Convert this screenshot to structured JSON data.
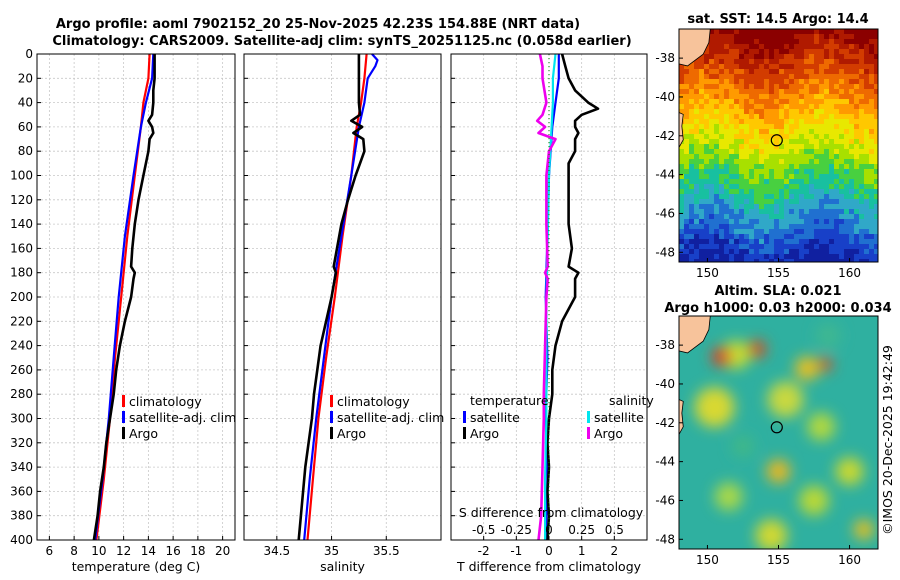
{
  "header": {
    "line1": "Argo profile: aoml 7902152_20 25-Nov-2025 42.23S 154.88E (NRT data)",
    "line2": "Climatology: CARS2009. Satellite-adj clim: synTS_20251125.nc (0.058d earlier)"
  },
  "colors": {
    "clim": "#ff0000",
    "sat": "#0000ff",
    "argo": "#000000",
    "sat_sal": "#00e5ee",
    "argo_sal": "#ee00ee"
  },
  "chart_data": [
    {
      "type": "line",
      "id": "temperature",
      "xlabel": "temperature (deg C)",
      "ylabel": "",
      "xlim": [
        5,
        21
      ],
      "ylim": [
        0,
        400
      ],
      "xticks": [
        6,
        8,
        10,
        12,
        14,
        16,
        18,
        20
      ],
      "yticks": [
        0,
        20,
        40,
        60,
        80,
        100,
        120,
        140,
        160,
        180,
        200,
        220,
        240,
        260,
        280,
        300,
        320,
        340,
        360,
        380,
        400
      ],
      "legend": [
        "climatology",
        "satellite-adj. clim",
        "Argo"
      ],
      "series": [
        {
          "name": "climatology",
          "color": "#ff0000",
          "depth": [
            0,
            20,
            40,
            60,
            100,
            150,
            200,
            250,
            300,
            350,
            400
          ],
          "values": [
            14.1,
            14.0,
            13.6,
            13.4,
            12.9,
            12.3,
            11.8,
            11.3,
            10.9,
            10.4,
            9.8
          ]
        },
        {
          "name": "satellite-adj. clim",
          "color": "#0000ff",
          "depth": [
            0,
            20,
            40,
            60,
            100,
            150,
            200,
            250,
            300,
            350,
            400
          ],
          "values": [
            14.4,
            14.3,
            13.8,
            13.4,
            12.8,
            12.1,
            11.6,
            11.2,
            10.8,
            10.3,
            9.7
          ]
        },
        {
          "name": "Argo",
          "color": "#000000",
          "depth": [
            0,
            10,
            20,
            30,
            40,
            50,
            55,
            60,
            65,
            70,
            80,
            90,
            100,
            120,
            140,
            160,
            175,
            180,
            185,
            200,
            220,
            240,
            260,
            280,
            300,
            320,
            340,
            360,
            380,
            400
          ],
          "values": [
            14.5,
            14.5,
            14.5,
            14.4,
            14.4,
            14.3,
            14.0,
            14.3,
            14.4,
            14.1,
            14.0,
            13.8,
            13.6,
            13.2,
            12.9,
            12.7,
            12.6,
            12.9,
            12.8,
            12.6,
            12.1,
            11.7,
            11.4,
            11.2,
            10.9,
            10.6,
            10.4,
            10.1,
            9.9,
            9.6
          ]
        }
      ]
    },
    {
      "type": "line",
      "id": "salinity",
      "xlabel": "salinity",
      "xlim": [
        34.2,
        36.0
      ],
      "ylim": [
        0,
        400
      ],
      "xticks": [
        34.5,
        35,
        35.5
      ],
      "legend": [
        "climatology",
        "satellite-adj. clim",
        "Argo"
      ],
      "series": [
        {
          "name": "climatology",
          "color": "#ff0000",
          "depth": [
            0,
            20,
            40,
            60,
            100,
            150,
            200,
            250,
            300,
            350,
            400
          ],
          "values": [
            35.32,
            35.3,
            35.27,
            35.23,
            35.18,
            35.1,
            35.03,
            34.95,
            34.88,
            34.83,
            34.78
          ]
        },
        {
          "name": "satellite-adj. clim",
          "color": "#0000ff",
          "depth": [
            0,
            5,
            10,
            20,
            40,
            60,
            100,
            150,
            200,
            250,
            300,
            350,
            400
          ],
          "values": [
            35.37,
            35.42,
            35.4,
            35.33,
            35.3,
            35.25,
            35.18,
            35.09,
            35.0,
            34.93,
            34.86,
            34.8,
            34.75
          ]
        },
        {
          "name": "Argo",
          "color": "#000000",
          "depth": [
            0,
            10,
            20,
            30,
            40,
            50,
            55,
            60,
            65,
            70,
            80,
            90,
            100,
            120,
            140,
            160,
            175,
            180,
            185,
            200,
            220,
            240,
            260,
            280,
            300,
            320,
            340,
            360,
            380,
            400
          ],
          "values": [
            35.25,
            35.25,
            35.25,
            35.25,
            35.25,
            35.26,
            35.18,
            35.28,
            35.2,
            35.29,
            35.3,
            35.26,
            35.22,
            35.15,
            35.09,
            35.05,
            35.02,
            35.04,
            35.03,
            35.0,
            34.95,
            34.9,
            34.87,
            34.84,
            34.82,
            34.79,
            34.76,
            34.74,
            34.72,
            34.7
          ]
        }
      ]
    },
    {
      "type": "line",
      "id": "difference",
      "xlabel": "T difference from climatology",
      "title_top": "S difference from climatology",
      "xlim": [
        -3,
        3
      ],
      "ylim": [
        0,
        400
      ],
      "xticks": [
        -2,
        -1,
        0,
        1,
        2
      ],
      "xtick_labels": [
        "-2",
        "-1",
        "0",
        "1",
        "2"
      ],
      "sticks": [
        -0.5,
        -0.25,
        0,
        0.25,
        0.5
      ],
      "stick_labels": [
        "-0.5",
        "-0.25",
        "0",
        "0.25",
        "0.5"
      ],
      "s_scale": 4,
      "legend_t_title": "temperature",
      "legend_s_title": "salinity",
      "legend_t": [
        "satellite",
        "Argo"
      ],
      "legend_s": [
        "satellite",
        "Argo"
      ],
      "series": [
        {
          "name": "T satellite",
          "color": "#0000ff",
          "depth": [
            0,
            20,
            40,
            60,
            100,
            150,
            200,
            250,
            300,
            350,
            400
          ],
          "values": [
            0.3,
            0.3,
            0.2,
            0.1,
            0.0,
            -0.05,
            -0.1,
            -0.05,
            -0.1,
            -0.05,
            -0.1
          ]
        },
        {
          "name": "T Argo",
          "color": "#000000",
          "depth": [
            0,
            10,
            20,
            30,
            40,
            45,
            50,
            55,
            60,
            65,
            70,
            80,
            90,
            100,
            120,
            140,
            160,
            175,
            180,
            185,
            200,
            220,
            240,
            260,
            280,
            300,
            320,
            340,
            360,
            380,
            400
          ],
          "values": [
            0.4,
            0.5,
            0.6,
            0.8,
            1.2,
            1.5,
            1.0,
            0.8,
            0.8,
            0.9,
            0.8,
            0.8,
            0.6,
            0.6,
            0.6,
            0.6,
            0.7,
            0.6,
            0.9,
            0.8,
            0.8,
            0.4,
            0.2,
            0.1,
            0.1,
            0.0,
            -0.05,
            0.0,
            -0.05,
            0.0,
            -0.05
          ]
        },
        {
          "name": "S satellite",
          "color": "#00e5ee",
          "depth": [
            0,
            20,
            40,
            60,
            100,
            150,
            200,
            250,
            300,
            350,
            400
          ],
          "values": [
            0.05,
            0.03,
            0.03,
            0.02,
            0.0,
            -0.01,
            -0.02,
            -0.02,
            -0.02,
            -0.03,
            -0.03
          ]
        },
        {
          "name": "S Argo",
          "color": "#ee00ee",
          "depth": [
            0,
            10,
            20,
            40,
            50,
            55,
            60,
            65,
            70,
            80,
            100,
            140,
            175,
            180,
            185,
            200,
            240,
            280,
            300,
            340,
            380,
            400
          ],
          "values": [
            -0.07,
            -0.05,
            -0.05,
            -0.02,
            -0.05,
            -0.09,
            -0.03,
            -0.08,
            0.05,
            0.0,
            -0.02,
            -0.02,
            -0.01,
            -0.03,
            -0.01,
            -0.02,
            -0.03,
            -0.04,
            -0.04,
            -0.05,
            -0.06,
            -0.08
          ]
        }
      ]
    },
    {
      "type": "heatmap",
      "id": "sst-map",
      "title": "sat. SST: 14.5 Argo: 14.4",
      "xlim": [
        148,
        162
      ],
      "ylim": [
        -48.5,
        -36.5
      ],
      "xticks": [
        150,
        155,
        160
      ],
      "yticks": [
        -38,
        -40,
        -42,
        -44,
        -46,
        -48
      ],
      "marker": {
        "lon": 154.88,
        "lat": -42.23
      }
    },
    {
      "type": "heatmap",
      "id": "sla-map",
      "title": "Altim. SLA: 0.021",
      "title2": "Argo h1000: 0.03 h2000: 0.034",
      "xlim": [
        148,
        162
      ],
      "ylim": [
        -48.5,
        -36.5
      ],
      "xticks": [
        150,
        155,
        160
      ],
      "yticks": [
        -38,
        -40,
        -42,
        -44,
        -46,
        -48
      ],
      "marker": {
        "lon": 154.88,
        "lat": -42.23
      }
    }
  ],
  "credit": "©IMOS 20-Dec-2025 19:42:49"
}
